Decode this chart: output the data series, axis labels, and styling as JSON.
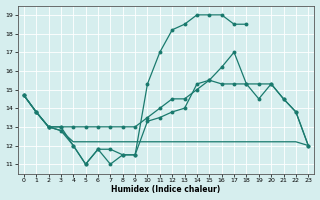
{
  "xlabel": "Humidex (Indice chaleur)",
  "xlim": [
    -0.5,
    23.5
  ],
  "ylim": [
    10.5,
    19.5
  ],
  "yticks": [
    11,
    12,
    13,
    14,
    15,
    16,
    17,
    18,
    19
  ],
  "xticks": [
    0,
    1,
    2,
    3,
    4,
    5,
    6,
    7,
    8,
    9,
    10,
    11,
    12,
    13,
    14,
    15,
    16,
    17,
    18,
    19,
    20,
    21,
    22,
    23
  ],
  "background_color": "#d6eeee",
  "grid_color": "#ffffff",
  "line_color": "#1a7a6e",
  "line1_x": [
    0,
    1,
    2,
    3,
    4,
    5,
    6,
    7,
    8,
    9,
    10,
    11,
    12,
    13,
    14,
    15,
    16,
    17,
    18,
    19,
    20,
    21,
    22,
    23
  ],
  "line1_y": [
    14.7,
    13.8,
    13.0,
    13.0,
    12.0,
    11.0,
    11.8,
    11.0,
    11.5,
    11.5,
    13.3,
    13.5,
    13.8,
    14.0,
    15.3,
    15.5,
    15.3,
    15.3,
    15.3,
    15.3,
    15.3,
    14.5,
    13.8,
    12.0
  ],
  "line2_x": [
    0,
    1,
    2,
    3,
    4,
    5,
    6,
    7,
    8,
    9,
    10,
    11,
    12,
    13,
    14,
    15,
    16,
    17,
    18
  ],
  "line2_y": [
    14.7,
    13.8,
    13.0,
    12.8,
    12.0,
    11.0,
    11.8,
    11.8,
    11.5,
    11.5,
    15.3,
    17.0,
    18.2,
    18.5,
    19.0,
    19.0,
    19.0,
    18.5,
    18.5
  ],
  "line3_x": [
    0,
    1,
    2,
    3,
    4,
    5,
    6,
    7,
    8,
    9,
    10,
    11,
    12,
    13,
    14,
    15,
    16,
    17,
    18,
    19,
    20,
    21,
    22,
    23
  ],
  "line3_y": [
    14.7,
    13.8,
    13.0,
    12.8,
    12.2,
    12.2,
    12.2,
    12.2,
    12.2,
    12.2,
    12.2,
    12.2,
    12.2,
    12.2,
    12.2,
    12.2,
    12.2,
    12.2,
    12.2,
    12.2,
    12.2,
    12.2,
    12.2,
    12.0
  ],
  "line4_x": [
    0,
    1,
    2,
    3,
    4,
    5,
    6,
    7,
    8,
    9,
    10,
    11,
    12,
    13,
    14,
    15,
    16,
    17,
    18,
    19,
    20,
    21,
    22,
    23
  ],
  "line4_y": [
    14.7,
    13.8,
    13.0,
    13.0,
    13.0,
    13.0,
    13.0,
    13.0,
    13.0,
    13.0,
    13.5,
    14.0,
    14.5,
    14.5,
    15.0,
    15.5,
    16.2,
    17.0,
    15.3,
    14.5,
    15.3,
    14.5,
    13.8,
    12.0
  ]
}
